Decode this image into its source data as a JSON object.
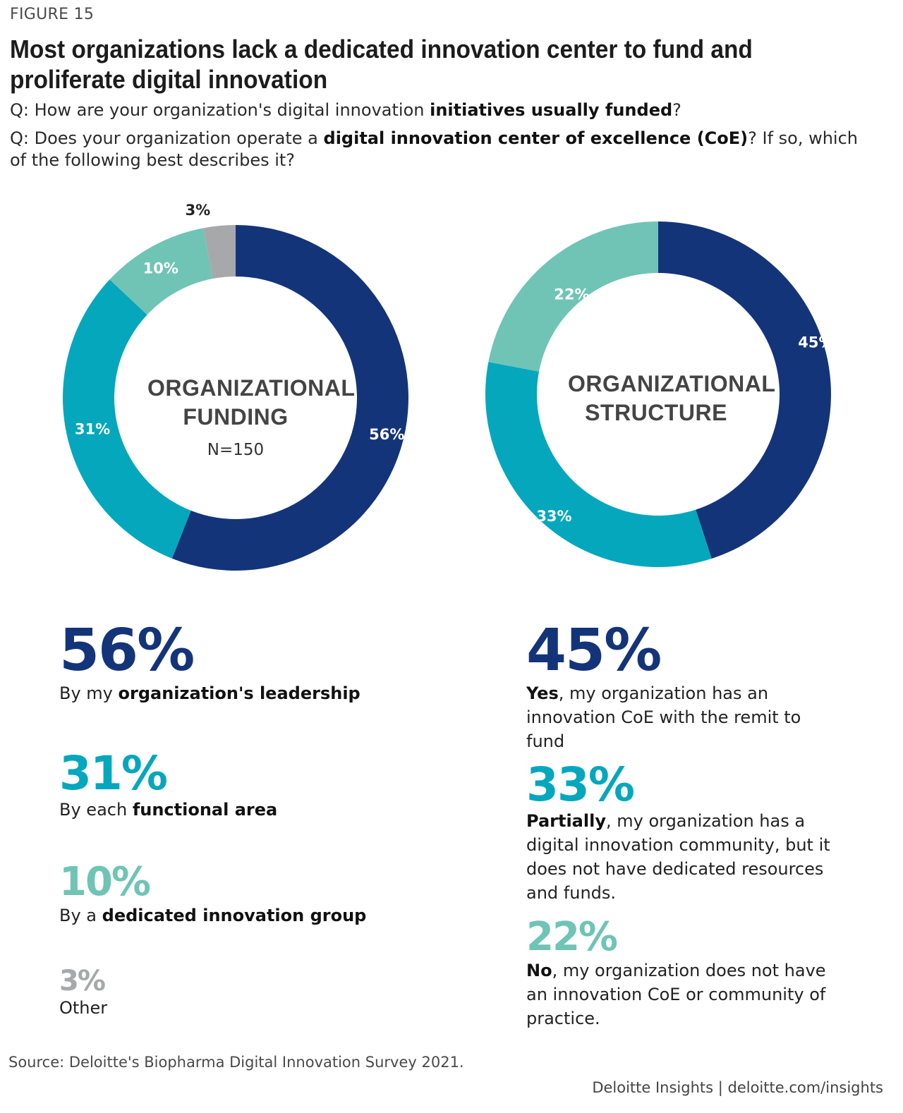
{
  "figure_label": "FIGURE 15",
  "title": "Most organizations lack a dedicated innovation center to fund and proliferate digital innovation",
  "questions": [
    {
      "prefix": "Q: How are your organization's digital innovation ",
      "bold": "initiatives usually funded",
      "suffix": "?"
    },
    {
      "prefix": "Q: Does your organization operate a ",
      "bold": "digital innovation center of excellence (CoE)",
      "suffix": "? If so, which of the following best describes it?"
    }
  ],
  "colors": {
    "dark_navy": "#14347a",
    "teal": "#05a7bd",
    "light_teal": "#6fc4b5",
    "gray": "#a7a8aa"
  },
  "chart_data": [
    {
      "type": "pie",
      "title": "ORGANIZATIONAL FUNDING",
      "subtitle": "N=150",
      "slices": [
        {
          "value": 56,
          "label": "56%",
          "color": "#14347a"
        },
        {
          "value": 31,
          "label": "31%",
          "color": "#05a7bd"
        },
        {
          "value": 10,
          "label": "10%",
          "color": "#6fc4b5"
        },
        {
          "value": 3,
          "label": "3%",
          "color": "#a7a8aa"
        }
      ]
    },
    {
      "type": "pie",
      "title": "ORGANIZATIONAL STRUCTURE",
      "subtitle": "",
      "slices": [
        {
          "value": 45,
          "label": "45%",
          "color": "#14347a"
        },
        {
          "value": 33,
          "label": "33%",
          "color": "#05a7bd"
        },
        {
          "value": 22,
          "label": "22%",
          "color": "#6fc4b5"
        }
      ]
    }
  ],
  "funding_stats": [
    {
      "value": "56%",
      "color": "#14347a",
      "desc_parts": [
        {
          "t": "By my "
        },
        {
          "t": "organization's leadership",
          "b": true
        }
      ]
    },
    {
      "value": "31%",
      "color": "#05a7bd",
      "desc_parts": [
        {
          "t": "By each "
        },
        {
          "t": "functional area",
          "b": true
        }
      ]
    },
    {
      "value": "10%",
      "color": "#6fc4b5",
      "desc_parts": [
        {
          "t": "By a "
        },
        {
          "t": "dedicated innovation group",
          "b": true
        }
      ]
    },
    {
      "value": "3%",
      "color": "#a7a8aa",
      "desc_parts": [
        {
          "t": "Other"
        }
      ]
    }
  ],
  "structure_stats": [
    {
      "value": "45%",
      "color": "#14347a",
      "desc_parts": [
        {
          "t": "Yes",
          "b": true
        },
        {
          "t": ", my organization has an innovation CoE with the remit to fund"
        }
      ]
    },
    {
      "value": "33%",
      "color": "#05a7bd",
      "desc_parts": [
        {
          "t": "Partially",
          "b": true
        },
        {
          "t": ", my organization has a digital innovation community, but it does not have dedicated resources and funds."
        }
      ]
    },
    {
      "value": "22%",
      "color": "#6fc4b5",
      "desc_parts": [
        {
          "t": "No",
          "b": true
        },
        {
          "t": ", my organization does not have an innovation CoE or community of practice."
        }
      ]
    }
  ],
  "source": "Source: Deloitte's Biopharma Digital Innovation Survey 2021.",
  "brand": "Deloitte Insights | deloitte.com/insights"
}
